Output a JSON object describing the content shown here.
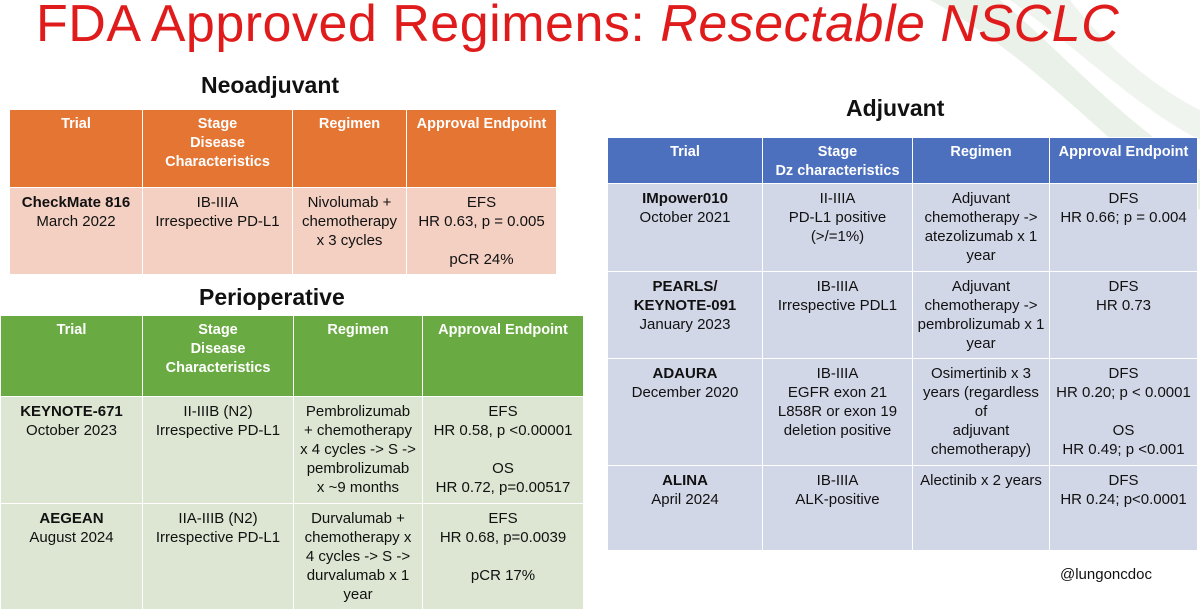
{
  "title": {
    "main": "FDA Approved Regimens: ",
    "emph": "Resectable NSCLC"
  },
  "colors": {
    "title": "#e01b1b",
    "neoadjuvant_header": "#e57533",
    "neoadjuvant_body": "#f4d0c3",
    "perioperative_header": "#6aaa42",
    "perioperative_body": "#dce6d2",
    "adjuvant_header": "#4d70be",
    "adjuvant_body": "#d2d7e8"
  },
  "neoadjuvant": {
    "heading": "Neoadjuvant",
    "headers": [
      "Trial",
      "Stage",
      "Disease",
      "Characteristics",
      "Regimen",
      "Approval Endpoint"
    ],
    "rows": [
      {
        "trial": "CheckMate 816",
        "date": "March 2022",
        "stage": [
          "IB-IIIA",
          "Irrespective PD-L1"
        ],
        "regimen": [
          "Nivolumab +",
          "chemotherapy",
          "x 3 cycles"
        ],
        "endpoint": [
          "EFS",
          "HR 0.63, p = 0.005",
          "",
          "pCR 24%"
        ]
      }
    ]
  },
  "perioperative": {
    "heading": "Perioperative",
    "headers": [
      "Trial",
      "Stage",
      "Disease",
      "Characteristics",
      "Regimen",
      "Approval Endpoint"
    ],
    "rows": [
      {
        "trial": "KEYNOTE-671",
        "date": "October 2023",
        "stage": [
          "II-IIIB (N2)",
          "Irrespective PD-L1"
        ],
        "regimen": [
          "Pembrolizumab",
          "+ chemotherapy",
          "x 4 cycles -> S ->",
          "pembrolizumab",
          "x ~9 months"
        ],
        "endpoint": [
          "EFS",
          "HR 0.58, p <0.00001",
          "",
          "OS",
          "HR 0.72, p=0.00517"
        ]
      },
      {
        "trial": "AEGEAN",
        "date": "August 2024",
        "stage": [
          "IIA-IIIB (N2)",
          "Irrespective PD-L1"
        ],
        "regimen": [
          "Durvalumab +",
          "chemotherapy x",
          "4 cycles -> S ->",
          "durvalumab x 1",
          "year"
        ],
        "endpoint": [
          "EFS",
          "HR 0.68, p=0.0039",
          "",
          "pCR 17%"
        ]
      }
    ]
  },
  "adjuvant": {
    "heading": "Adjuvant",
    "headers": [
      "Trial",
      "Stage",
      "Dz characteristics",
      "Regimen",
      "Approval Endpoint"
    ],
    "rows": [
      {
        "trial": "IMpower010",
        "date": "October 2021",
        "stage": [
          "II-IIIA",
          "PD-L1 positive",
          "(>/=1%)"
        ],
        "regimen": [
          "Adjuvant",
          "chemotherapy ->",
          "atezolizumab x 1",
          "year"
        ],
        "endpoint": [
          "DFS",
          "HR 0.66; p = 0.004"
        ]
      },
      {
        "trial": "PEARLS/",
        "trial2": "KEYNOTE-091",
        "date": "January 2023",
        "stage": [
          "IB-IIIA",
          "Irrespective PDL1"
        ],
        "regimen": [
          "Adjuvant",
          "chemotherapy ->",
          "pembrolizumab x 1",
          "year"
        ],
        "endpoint": [
          "DFS",
          "HR 0.73"
        ]
      },
      {
        "trial": "ADAURA",
        "date": "December 2020",
        "stage": [
          "IB-IIIA",
          "EGFR exon 21",
          "L858R or exon 19",
          "deletion positive"
        ],
        "regimen": [
          "Osimertinib x 3",
          "years (regardless of",
          "adjuvant",
          "chemotherapy)"
        ],
        "endpoint": [
          "DFS",
          "HR 0.20; p < 0.0001",
          "",
          "OS",
          "HR 0.49; p <0.001"
        ]
      },
      {
        "trial": "ALINA",
        "date": "April 2024",
        "stage": [
          "IB-IIIA",
          "ALK-positive"
        ],
        "regimen": [
          "Alectinib x 2 years"
        ],
        "endpoint": [
          "DFS",
          "HR 0.24; p<0.0001"
        ]
      }
    ]
  },
  "handle": "@lungoncdoc"
}
